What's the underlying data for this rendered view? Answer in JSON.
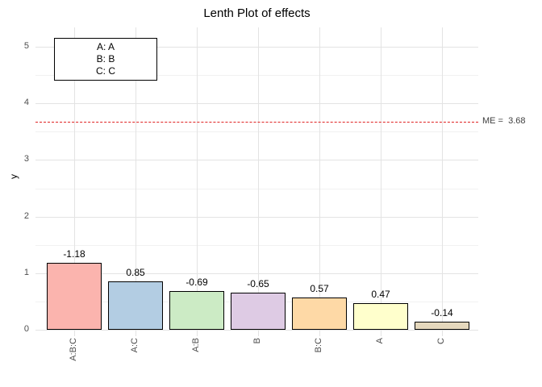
{
  "title": "Lenth Plot of effects",
  "axes": {
    "y_label": "y",
    "y_ticks": [
      0,
      1,
      2,
      3,
      4,
      5
    ]
  },
  "chart_data": {
    "type": "bar",
    "title": "Lenth Plot of effects",
    "xlabel": "",
    "ylabel": "y",
    "ylim": [
      0,
      5.35
    ],
    "grid": true,
    "categories": [
      "A:B:C",
      "A:C",
      "A:B",
      "B",
      "B:C",
      "A",
      "C"
    ],
    "values": [
      1.18,
      0.85,
      0.69,
      0.65,
      0.57,
      0.47,
      0.14
    ],
    "bars": [
      {
        "category": "A:B:C",
        "effect": -1.18,
        "label": "-1.18",
        "height": 1.18,
        "color": "#FBB4AE"
      },
      {
        "category": "A:C",
        "effect": 0.85,
        "label": "0.85",
        "height": 0.85,
        "color": "#B3CDE3"
      },
      {
        "category": "A:B",
        "effect": -0.69,
        "label": "-0.69",
        "height": 0.69,
        "color": "#CCEBC5"
      },
      {
        "category": "B",
        "effect": -0.65,
        "label": "-0.65",
        "height": 0.65,
        "color": "#DECBE4"
      },
      {
        "category": "B:C",
        "effect": 0.57,
        "label": "0.57",
        "height": 0.57,
        "color": "#FED9A6"
      },
      {
        "category": "A",
        "effect": 0.47,
        "label": "0.47",
        "height": 0.47,
        "color": "#FFFFCC"
      },
      {
        "category": "C",
        "effect": -0.14,
        "label": "-0.14",
        "height": 0.14,
        "color": "#E5D8BD"
      }
    ],
    "reference_line": {
      "y": 3.68,
      "label": "ME =  3.68",
      "style": "dashed",
      "color": "#e02222"
    },
    "legend": {
      "position": "top-left",
      "entries": [
        "A: A",
        "B: B",
        "C: C"
      ]
    },
    "bar_border_color": "#000000",
    "major_grid_color": "#e3e3e3",
    "minor_grid_color": "#f1f1f1"
  }
}
